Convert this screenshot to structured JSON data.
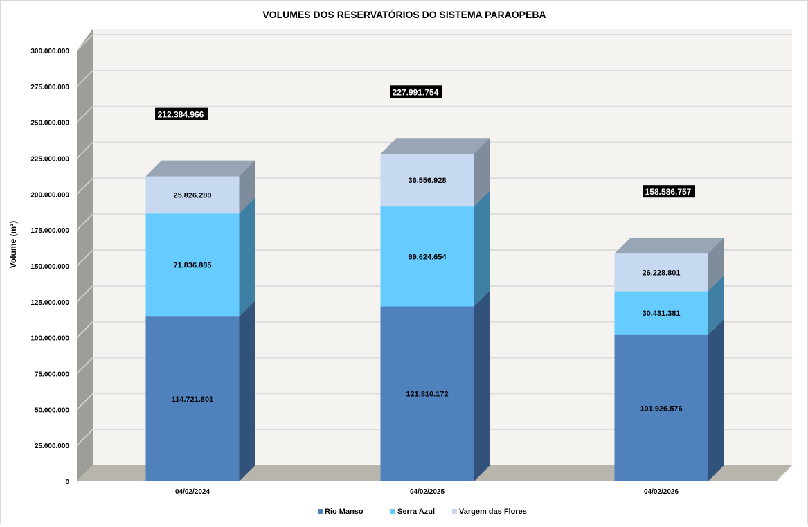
{
  "chart_data": {
    "type": "bar",
    "stacked": true,
    "three_d": true,
    "title": "VOLUMES DOS RESERVATÓRIOS DO SISTEMA PARAOPEBA",
    "xlabel": "",
    "ylabel": "Volume (m³)",
    "ylim": [
      0,
      300000000
    ],
    "yticks": [
      0,
      25000000,
      50000000,
      75000000,
      100000000,
      125000000,
      150000000,
      175000000,
      200000000,
      225000000,
      250000000,
      275000000,
      300000000
    ],
    "ytick_labels": [
      "0",
      "25.000.000",
      "50.000.000",
      "75.000.000",
      "100.000.000",
      "125.000.000",
      "150.000.000",
      "175.000.000",
      "200.000.000",
      "225.000.000",
      "250.000.000",
      "275.000.000",
      "300.000.000"
    ],
    "categories": [
      "04/02/2024",
      "04/02/2025",
      "04/02/2026"
    ],
    "series": [
      {
        "name": "Rio Manso",
        "color": "#4f81bd",
        "values": [
          114721801,
          121810172,
          101926576
        ],
        "labels": [
          "114.721.801",
          "121.810.172",
          "101.926.576"
        ]
      },
      {
        "name": "Serra Azul",
        "color": "#66ccff",
        "values": [
          71836885,
          69624654,
          30431381
        ],
        "labels": [
          "71.836.885",
          "69.624.654",
          "30.431.381"
        ]
      },
      {
        "name": "Vargem das Flores",
        "color": "#c6d9f1",
        "values": [
          25826280,
          36556928,
          26228801
        ],
        "labels": [
          "25.826.280",
          "36.556.928",
          "26.228.801"
        ]
      }
    ],
    "totals": [
      212384966,
      227991754,
      158586757
    ],
    "total_labels": [
      "212.384.966",
      "227.991.754",
      "158.586.757"
    ],
    "grid": true,
    "legend": "bottom"
  }
}
